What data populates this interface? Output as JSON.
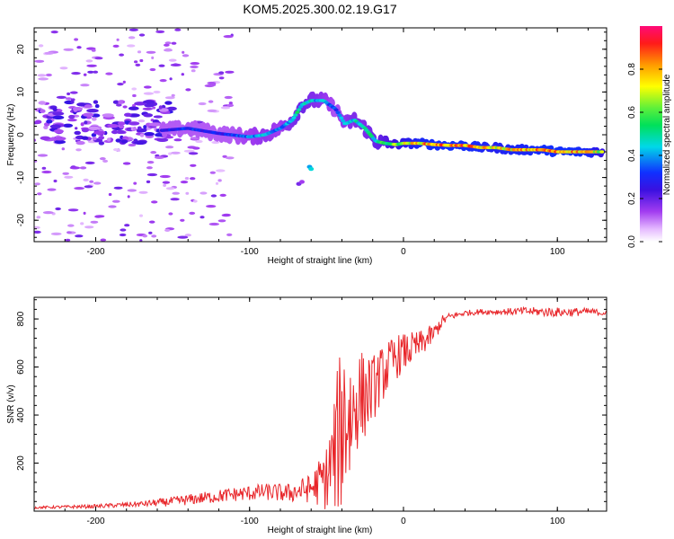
{
  "title": "KOM5.2025.300.02.19.G17",
  "chart_data": [
    {
      "type": "heatmap",
      "title": "KOM5.2025.300.02.19.G17",
      "xlabel": "Height of straight line (km)",
      "ylabel": "Frequency (Hz)",
      "xlim": [
        -240,
        132
      ],
      "ylim": [
        -25,
        25
      ],
      "xticks": [
        -200,
        -100,
        0,
        100
      ],
      "yticks": [
        -20,
        -10,
        0,
        10,
        20
      ],
      "xtick_labels": [
        "-200",
        "-100",
        "0",
        "100"
      ],
      "ytick_labels": [
        "-20",
        "-10",
        "0",
        "10",
        "20"
      ],
      "colorbar": {
        "label": "Normalized spectral amplitude",
        "range": [
          0,
          1
        ],
        "ticks": [
          0.0,
          0.2,
          0.4,
          0.6,
          0.8
        ],
        "tick_labels": [
          "0.0",
          "0.2",
          "0.4",
          "0.6",
          "0.8"
        ],
        "colors": [
          "#ffffff",
          "#d48cff",
          "#7a1fd6",
          "#1c1cf0",
          "#00d9e6",
          "#33e633",
          "#ffff00",
          "#ff9a00",
          "#ff1a1a",
          "#ff0a78"
        ]
      },
      "ridge": {
        "x": [
          -157,
          -140,
          -120,
          -100,
          -90,
          -80,
          -72,
          -66,
          -60,
          -52,
          -44,
          -38,
          -32,
          -25,
          -18,
          -12,
          -5,
          0,
          10,
          20,
          30,
          40,
          50,
          60,
          70,
          80,
          90,
          100,
          110,
          120,
          130
        ],
        "y": [
          1,
          1.5,
          0.3,
          -0.5,
          0,
          1.5,
          3.5,
          7,
          8,
          8,
          6,
          2.5,
          3.5,
          1.5,
          -1.5,
          -2,
          -2.3,
          -2,
          -2,
          -2.3,
          -2.5,
          -2.5,
          -3,
          -3,
          -3.5,
          -3.5,
          -3.5,
          -4,
          -4,
          -4,
          -4
        ],
        "amplitude": [
          0.3,
          0.35,
          0.3,
          0.4,
          0.45,
          0.4,
          0.5,
          0.55,
          0.5,
          0.45,
          0.35,
          0.45,
          0.5,
          0.5,
          0.55,
          0.6,
          0.7,
          0.75,
          0.85,
          0.9,
          0.9,
          0.9,
          0.85,
          0.8,
          0.85,
          0.85,
          0.9,
          0.9,
          0.9,
          0.85,
          0.7
        ]
      }
    },
    {
      "type": "line",
      "xlabel": "Height of straight line (km)",
      "ylabel": "SNR (v/v)",
      "xlim": [
        -240,
        132
      ],
      "ylim": [
        0,
        890
      ],
      "xticks": [
        -200,
        -100,
        0,
        100
      ],
      "yticks": [
        200,
        400,
        600,
        800
      ],
      "xtick_labels": [
        "-200",
        "-100",
        "0",
        "100"
      ],
      "ytick_labels": [
        "200",
        "400",
        "600",
        "800"
      ],
      "series": [
        {
          "name": "SNR",
          "color": "#e8262a",
          "x": [
            -240,
            -200,
            -170,
            -150,
            -130,
            -110,
            -90,
            -75,
            -60,
            -50,
            -45,
            -40,
            -37,
            -34,
            -30,
            -25,
            -20,
            -15,
            -10,
            -5,
            0,
            10,
            20,
            25,
            30,
            40,
            50,
            60,
            80,
            100,
            120,
            132
          ],
          "y": [
            15,
            20,
            30,
            40,
            55,
            70,
            80,
            75,
            95,
            140,
            230,
            370,
            420,
            380,
            470,
            480,
            510,
            560,
            600,
            640,
            660,
            690,
            740,
            790,
            810,
            825,
            830,
            830,
            832,
            828,
            830,
            825
          ],
          "noise": [
            5,
            8,
            12,
            20,
            25,
            30,
            35,
            40,
            60,
            140,
            250,
            380,
            400,
            300,
            220,
            180,
            140,
            120,
            110,
            95,
            80,
            60,
            40,
            25,
            15,
            12,
            12,
            12,
            18,
            20,
            16,
            12
          ]
        }
      ]
    }
  ]
}
